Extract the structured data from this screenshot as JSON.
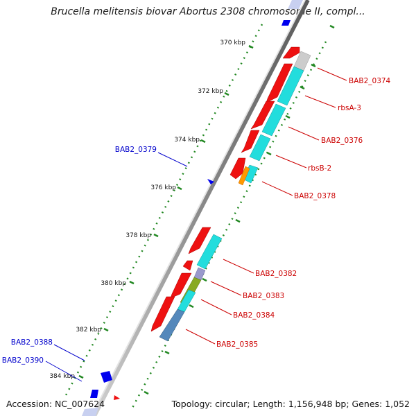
{
  "title": "Brucella melitensis biovar Abortus 2308 chromosome II, compl...",
  "footer": {
    "accession": "Accession: NC_007624",
    "info": "Topology: circular; Length: 1,156,948 bp; Genes: 1,052"
  },
  "ticks": [
    "370 kbp",
    "372 kbp",
    "374 kbp",
    "376 kbp",
    "378 kbp",
    "380 kbp",
    "382 kbp",
    "384 kbp"
  ],
  "right_labels": [
    "BAB2_0374",
    "rbsA-3",
    "BAB2_0376",
    "rbsB-2",
    "BAB2_0378",
    "BAB2_0382",
    "BAB2_0383",
    "BAB2_0384",
    "BAB2_0385"
  ],
  "left_labels": [
    "BAB2_0379",
    "BAB2_0388",
    "BAB2_0390"
  ],
  "colors": {
    "right_label": "#cc0000",
    "left_label": "#0000cc",
    "gene_red": "#ee1111",
    "cds_cyan": "#22dddd",
    "backbone": "#888888",
    "tick_green": "#228822",
    "forward_blue": "#0000ee"
  }
}
